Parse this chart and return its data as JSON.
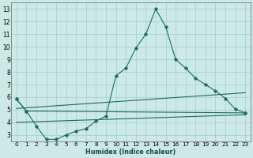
{
  "xlabel": "Humidex (Indice chaleur)",
  "bg_color": "#cce9e5",
  "grid_color": "#a8d4cf",
  "line_color": "#1c6b5e",
  "xlim": [
    -0.5,
    23.5
  ],
  "ylim": [
    2.5,
    13.5
  ],
  "xticks": [
    0,
    1,
    2,
    3,
    4,
    5,
    6,
    7,
    8,
    9,
    10,
    11,
    12,
    13,
    14,
    15,
    16,
    17,
    18,
    19,
    20,
    21,
    22,
    23
  ],
  "yticks": [
    3,
    4,
    5,
    6,
    7,
    8,
    9,
    10,
    11,
    12,
    13
  ],
  "series_peaked": {
    "x": [
      0,
      1,
      2,
      3,
      4,
      5,
      6,
      7,
      8,
      9,
      10,
      11,
      12,
      13,
      14,
      15,
      16,
      17,
      18,
      19,
      20,
      21,
      22,
      23
    ],
    "y": [
      5.85,
      4.9,
      3.7,
      2.65,
      2.65,
      3.0,
      3.3,
      3.5,
      4.1,
      4.5,
      7.7,
      8.3,
      9.9,
      11.0,
      13.0,
      11.6,
      9.0,
      8.3,
      7.5,
      7.0,
      6.5,
      5.9,
      5.05,
      4.75
    ]
  },
  "series_flat_top": {
    "x": [
      0,
      1,
      23
    ],
    "y": [
      5.85,
      4.9,
      4.75
    ]
  },
  "series_regress1": {
    "x": [
      0,
      23
    ],
    "y": [
      5.1,
      6.35
    ]
  },
  "series_regress2": {
    "x": [
      0,
      23
    ],
    "y": [
      4.0,
      4.6
    ]
  }
}
